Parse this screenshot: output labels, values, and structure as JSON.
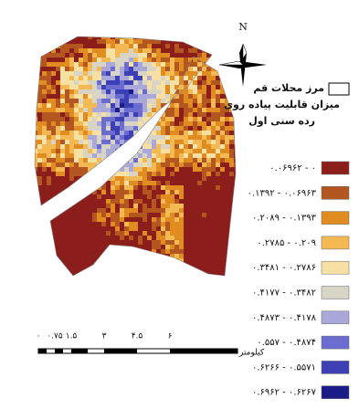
{
  "north": "N",
  "legend": {
    "boundary": "مرز محلات قم",
    "title_lines": [
      "میزان قابلیت پیاده روی",
      "رده سنی اول"
    ],
    "classes": [
      {
        "label": "۰.۰۶۹۶۲ - ۰",
        "color": "#8b1d1b"
      },
      {
        "label": "۰.۱۳۹۲ - ۰.۰۶۹۶۳",
        "color": "#b4561f"
      },
      {
        "label": "۰.۲۰۸۹ - ۰.۱۳۹۳",
        "color": "#e08c20"
      },
      {
        "label": "۰.۲۷۸۵ - ۰.۲۰۹",
        "color": "#f4b953"
      },
      {
        "label": "۰.۳۴۸۱ - ۰.۲۷۸۶",
        "color": "#f7e0a4"
      },
      {
        "label": "۰.۴۱۷۷ - ۰.۳۴۸۲",
        "color": "#d9d5c6"
      },
      {
        "label": "۰.۴۸۷۳ - ۰.۴۱۷۸",
        "color": "#aaa7db"
      },
      {
        "label": "۰.۵۵۷ - ۰.۴۸۷۴",
        "color": "#6b6cd0"
      },
      {
        "label": "۰.۶۲۶۶ - ۰.۵۵۷۱",
        "color": "#3d3fb4"
      },
      {
        "label": "۰.۶۹۶۲ - ۰.۶۲۶۷",
        "color": "#1b1c86"
      }
    ]
  },
  "scale": {
    "labels": [
      "۰",
      "۰.۷۵",
      "۱.۵",
      "۳",
      "۴.۵",
      "۶"
    ],
    "unit": "کیلومتر"
  }
}
